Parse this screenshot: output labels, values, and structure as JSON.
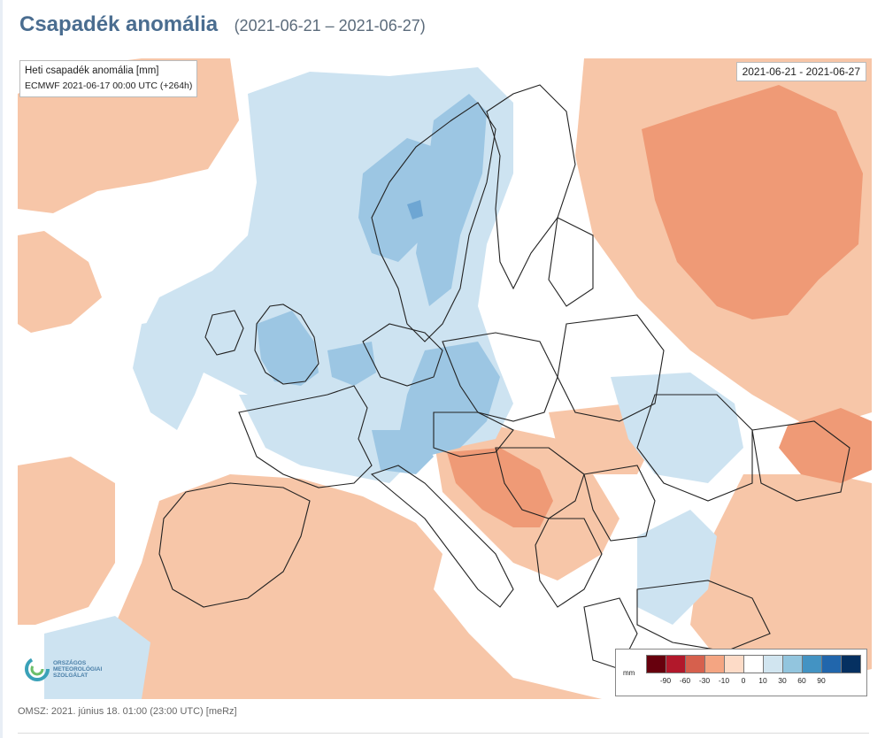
{
  "header": {
    "title": "Csapadék anomália",
    "date_range": "(2021-06-21 – 2021-06-27)"
  },
  "map": {
    "info_title": "Heti csapadék anomália [mm]",
    "info_model": "ECMWF 2021-06-17 00:00 UTC (+264h)",
    "date_label": "2021-06-21 - 2021-06-27",
    "colors": {
      "dry": "#f7c6a8",
      "very_dry": "#ef9a76",
      "extreme_dry": "#e07a5a",
      "wet": "#cde3f1",
      "very_wet": "#9cc6e3",
      "extreme_wet": "#6ea6d3",
      "neutral": "#ffffff",
      "border": "#222222"
    }
  },
  "logo": {
    "lines": [
      "ORSZÁGOS",
      "METEOROLÓGIAI",
      "SZOLGÁLAT"
    ],
    "icon": "omsz-logo-icon"
  },
  "legend": {
    "unit": "mm",
    "colors": [
      "#67000d",
      "#b2182b",
      "#d6604d",
      "#f4a582",
      "#fddbc7",
      "#ffffff",
      "#d1e5f0",
      "#92c5de",
      "#4393c3",
      "#2166ac",
      "#053061"
    ],
    "ticks": [
      "-90",
      "-60",
      "-30",
      "-10",
      "0",
      "10",
      "30",
      "60",
      "90"
    ]
  },
  "footer": {
    "text": "OMSZ: 2021. június 18. 01:00 (23:00  UTC)  [meRz]"
  }
}
